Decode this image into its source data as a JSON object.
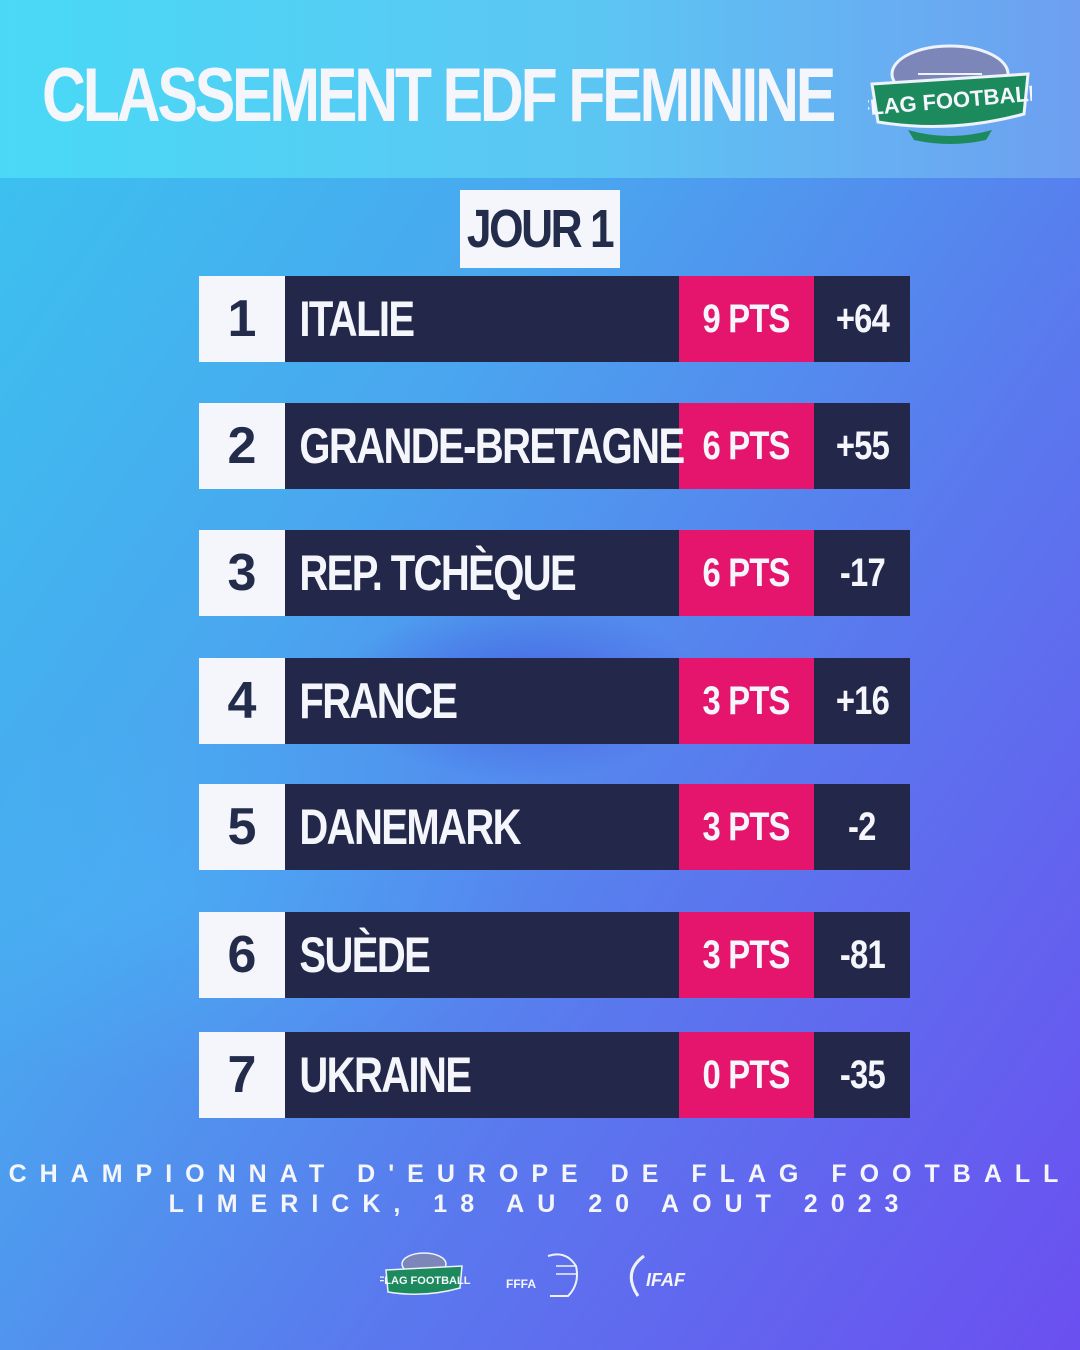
{
  "header": {
    "title": "CLASSEMENT EDF FEMININE",
    "logo_text": "FLAG FOOTBALL"
  },
  "day_label": "JOUR 1",
  "standings": [
    {
      "rank": "1",
      "team": "ITALIE",
      "points": "9 PTS",
      "diff": "+64"
    },
    {
      "rank": "2",
      "team": "GRANDE-BRETAGNE",
      "points": "6 PTS",
      "diff": "+55"
    },
    {
      "rank": "3",
      "team": "REP. TCHÈQUE",
      "points": "6 PTS",
      "diff": "-17"
    },
    {
      "rank": "4",
      "team": "FRANCE",
      "points": "3 PTS",
      "diff": "+16"
    },
    {
      "rank": "5",
      "team": "DANEMARK",
      "points": "3 PTS",
      "diff": "-2"
    },
    {
      "rank": "6",
      "team": "SUÈDE",
      "points": "3 PTS",
      "diff": "-81"
    },
    {
      "rank": "7",
      "team": "UKRAINE",
      "points": "0 PTS",
      "diff": "-35"
    }
  ],
  "footer": {
    "line1": "CHAMPIONNAT D'EUROPE DE FLAG FOOTBALL",
    "line2": "LIMERICK, 18 AU 20 AOUT 2023"
  },
  "sponsors": {
    "flag_football": "FLAG FOOTBALL",
    "fffa": "FFFA",
    "ifaf": "IFAF"
  },
  "colors": {
    "navy": "#23284a",
    "pink": "#e5156e",
    "white": "#f4f6fb",
    "logo_green": "#1d8a5e"
  }
}
